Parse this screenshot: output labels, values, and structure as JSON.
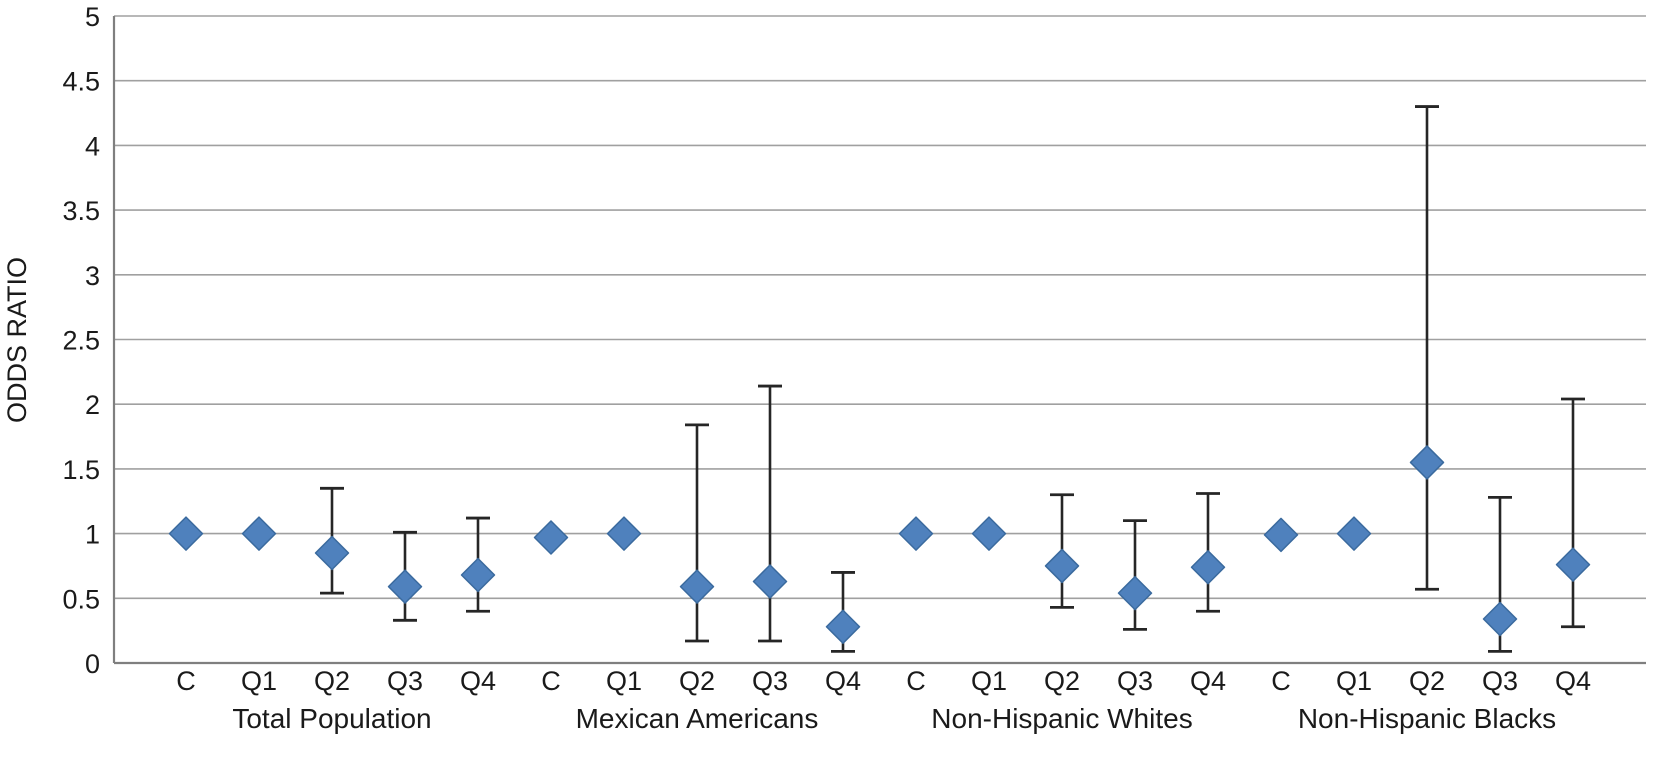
{
  "chart_data": {
    "type": "scatter",
    "subtype": "odds-ratio-plot-with-error-bars",
    "title": "",
    "xlabel": "",
    "ylabel": "ODDS RATIO",
    "ylim": [
      0,
      5
    ],
    "ytick_labels": [
      "0",
      "0.5",
      "1",
      "1.5",
      "2",
      "2.5",
      "3",
      "3.5",
      "4",
      "4.5",
      "5"
    ],
    "grid": "horizontal",
    "legend": "none",
    "marker": "diamond-icon",
    "error_bars": true,
    "groups": [
      {
        "label": "Total Population",
        "categories": [
          "C",
          "Q1",
          "Q2",
          "Q3",
          "Q4"
        ],
        "odds_ratios": [
          1.0,
          1.0,
          0.85,
          0.59,
          0.68
        ],
        "ci_low": [
          null,
          null,
          0.54,
          0.33,
          0.4
        ],
        "ci_high": [
          null,
          null,
          1.35,
          1.01,
          1.12
        ]
      },
      {
        "label": "Mexican Americans",
        "categories": [
          "C",
          "Q1",
          "Q2",
          "Q3",
          "Q4"
        ],
        "odds_ratios": [
          0.97,
          1.0,
          0.59,
          0.63,
          0.28
        ],
        "ci_low": [
          null,
          null,
          0.17,
          0.17,
          0.09
        ],
        "ci_high": [
          null,
          null,
          1.84,
          2.14,
          0.7
        ]
      },
      {
        "label": "Non-Hispanic Whites",
        "categories": [
          "C",
          "Q1",
          "Q2",
          "Q3",
          "Q4"
        ],
        "odds_ratios": [
          1.0,
          1.0,
          0.75,
          0.54,
          0.74
        ],
        "ci_low": [
          null,
          null,
          0.43,
          0.26,
          0.4
        ],
        "ci_high": [
          null,
          null,
          1.3,
          1.1,
          1.31
        ]
      },
      {
        "label": "Non-Hispanic Blacks",
        "categories": [
          "C",
          "Q1",
          "Q2",
          "Q3",
          "Q4"
        ],
        "odds_ratios": [
          0.99,
          1.0,
          1.55,
          0.34,
          0.76
        ],
        "ci_low": [
          null,
          null,
          0.57,
          0.09,
          0.28
        ],
        "ci_high": [
          null,
          null,
          4.3,
          1.28,
          2.04
        ]
      }
    ],
    "colors": {
      "marker_fill": "#4F81BD",
      "marker_border": "#3A6A9E",
      "error_bar": "#262626",
      "gridline": "#A0A0A0",
      "axis_line": "#7F7F7F",
      "text": "#1A1A1A",
      "background": "#FFFFFF"
    }
  }
}
